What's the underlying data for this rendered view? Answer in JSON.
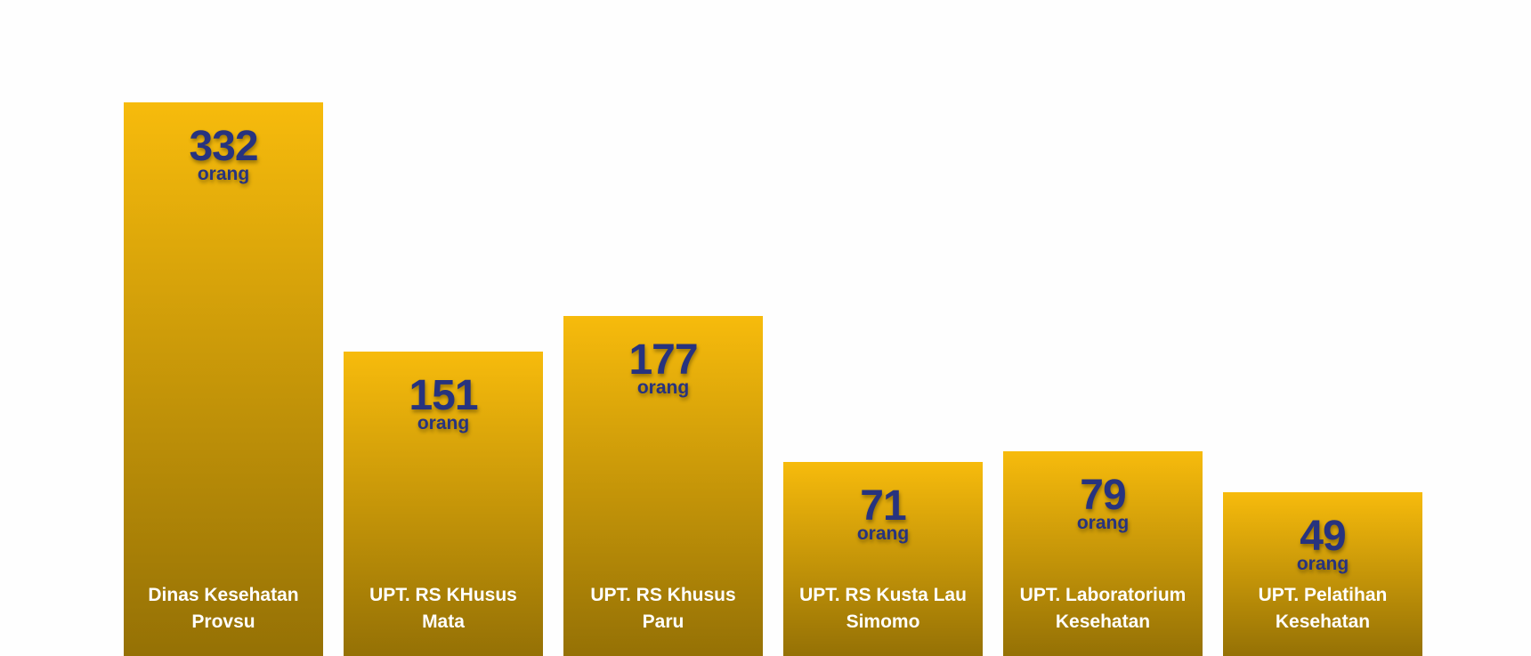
{
  "colors": {
    "bar_top": "#f7bb0c",
    "bar_bottom": "#957105",
    "value_text": "#27337f",
    "label_text": "#ffffff",
    "background": "#fefefe"
  },
  "chart_data": {
    "type": "bar",
    "categories": [
      "Dinas Kesehatan Provsu",
      "UPT. RS KHusus Mata",
      "UPT. RS Khusus Paru",
      "UPT. RS Kusta Lau Simomo",
      "UPT. Laboratorium Kesehatan",
      "UPT. Pelatihan Kesehatan"
    ],
    "label_lines": [
      [
        "Dinas Kesehatan",
        "Provsu"
      ],
      [
        "UPT. RS KHusus",
        "Mata"
      ],
      [
        "UPT. RS Khusus",
        "Paru"
      ],
      [
        "UPT. RS Kusta Lau",
        "Simomo"
      ],
      [
        "UPT. Laboratorium",
        "Kesehatan"
      ],
      [
        "UPT. Pelatihan",
        "Kesehatan"
      ]
    ],
    "values": [
      332,
      151,
      177,
      71,
      79,
      49
    ],
    "unit": "orang",
    "title": "",
    "xlabel": "",
    "ylabel": "",
    "grid": false
  }
}
